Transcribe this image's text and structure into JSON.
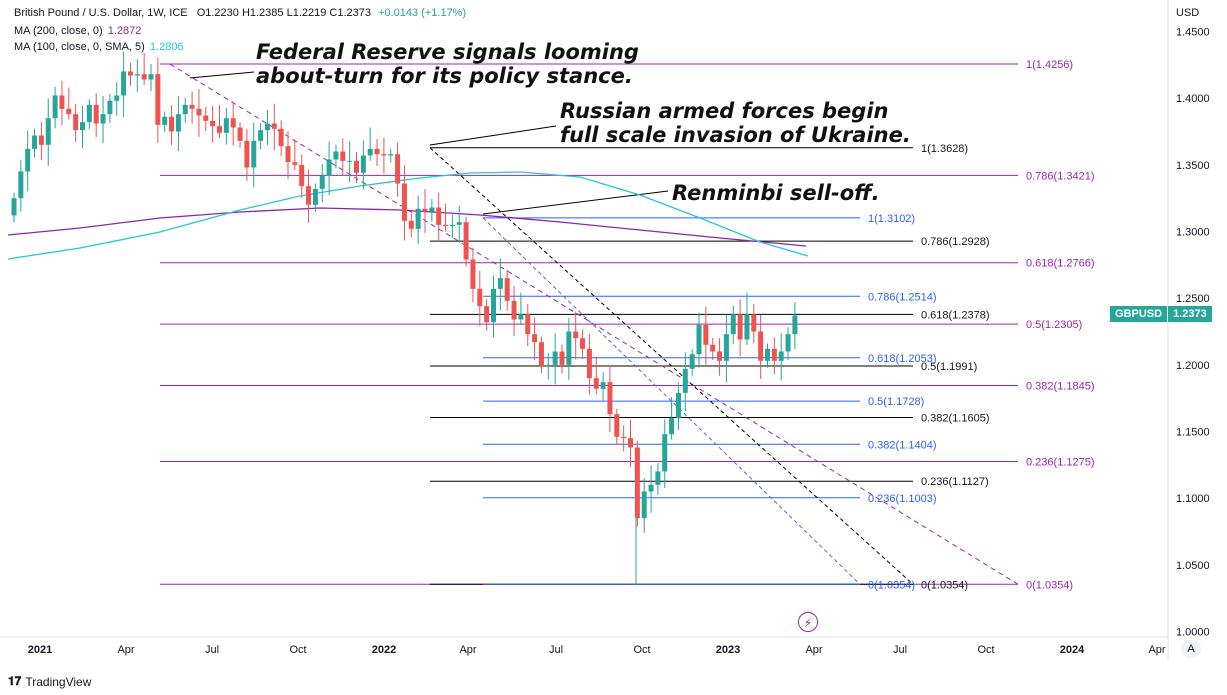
{
  "header": {
    "symbol": "British Pound / U.S. Dollar, 1W, ICE",
    "ohlc": "O1.2230 H1.2385 L1.2219 C1.2373",
    "change": "+0.0143 (+1.17%)"
  },
  "indicators": [
    {
      "label": "MA (200, close, 0)",
      "value": "1.2872",
      "color": "#8e24aa"
    },
    {
      "label": "MA (100, close, 0, SMA, 5)",
      "value": "1.2806",
      "color": "#26c6da"
    }
  ],
  "annotations": [
    [
      "Federal Reserve signals looming",
      "about-turn for its policy stance."
    ],
    [
      "Russian armed forces begin",
      "full scale invasion of Ukraine."
    ],
    [
      "Renminbi sell-off."
    ]
  ],
  "price_tag": {
    "symbol": "GBPUSD",
    "price": "1.2373"
  },
  "footer": {
    "logo": "TradingView"
  },
  "auto_button": "A",
  "colors": {
    "up": "#26a69a",
    "down": "#ef5350",
    "ma200": "#8e24aa",
    "ma100": "#26c6da",
    "fib_purple": "#9c27b0",
    "fib_blue": "#2962ff",
    "fib_black": "#000000"
  },
  "chart_data": {
    "type": "candlestick",
    "y_axis": {
      "label": "USD",
      "ticks": [
        "1.4500",
        "1.4000",
        "1.3500",
        "1.3000",
        "1.2500",
        "1.2000",
        "1.1500",
        "1.1000",
        "1.0500",
        "1.0000"
      ],
      "range": [
        0.99,
        1.46
      ]
    },
    "x_axis": {
      "labels": [
        "2021",
        "Apr",
        "Jul",
        "Oct",
        "2022",
        "Apr",
        "Jul",
        "Oct",
        "2023",
        "Apr",
        "Jul",
        "Oct",
        "2024",
        "Apr"
      ]
    },
    "series": [
      {
        "name": "GBPUSD",
        "close": [
          1.325,
          1.345,
          1.362,
          1.372,
          1.365,
          1.385,
          1.402,
          1.392,
          1.388,
          1.376,
          1.382,
          1.395,
          1.381,
          1.388,
          1.398,
          1.402,
          1.42,
          1.417,
          1.418,
          1.414,
          1.418,
          1.38,
          1.386,
          1.375,
          1.388,
          1.395,
          1.392,
          1.387,
          1.383,
          1.379,
          1.374,
          1.385,
          1.378,
          1.368,
          1.348,
          1.368,
          1.376,
          1.381,
          1.377,
          1.364,
          1.352,
          1.35,
          1.334,
          1.32,
          1.332,
          1.342,
          1.354,
          1.36,
          1.353,
          1.353,
          1.344,
          1.357,
          1.362,
          1.358,
          1.357,
          1.358,
          1.336,
          1.308,
          1.302,
          1.317,
          1.315,
          1.318,
          1.305,
          1.304,
          1.305,
          1.307,
          1.279,
          1.257,
          1.244,
          1.232,
          1.257,
          1.265,
          1.248,
          1.234,
          1.238,
          1.223,
          1.217,
          1.199,
          1.2,
          1.21,
          1.2,
          1.225,
          1.22,
          1.212,
          1.19,
          1.182,
          1.187,
          1.163,
          1.146,
          1.145,
          1.138,
          1.085,
          1.105,
          1.11,
          1.12,
          1.148,
          1.16,
          1.179,
          1.197,
          1.208,
          1.23,
          1.215,
          1.21,
          1.203,
          1.223,
          1.238,
          1.219,
          1.238,
          1.225,
          1.203,
          1.212,
          1.203,
          1.21,
          1.223,
          1.237
        ]
      }
    ],
    "moving_averages": [
      {
        "name": "MA (200, close, 0)",
        "last": 1.2872
      },
      {
        "name": "MA (100, close, 0, SMA, 5)",
        "last": 1.2806
      }
    ],
    "fib_levels": {
      "purple": [
        {
          "label": "1(1.4256)",
          "value": 1.4256
        },
        {
          "label": "0.786(1.3421)",
          "value": 1.3421
        },
        {
          "label": "0.618(1.2766)",
          "value": 1.2766
        },
        {
          "label": "0.5(1.2305)",
          "value": 1.2305
        },
        {
          "label": "0.382(1.1845)",
          "value": 1.1845
        },
        {
          "label": "0.236(1.1275)",
          "value": 1.1275
        },
        {
          "label": "0(1.0354)",
          "value": 1.0354
        }
      ],
      "black": [
        {
          "label": "1(1.3628)",
          "value": 1.3628
        },
        {
          "label": "0.786(1.2928)",
          "value": 1.2928
        },
        {
          "label": "0.618(1.2378)",
          "value": 1.2378
        },
        {
          "label": "0.5(1.1991)",
          "value": 1.1991
        },
        {
          "label": "0.382(1.1605)",
          "value": 1.1605
        },
        {
          "label": "0.236(1.1127)",
          "value": 1.1127
        },
        {
          "label": "0(1.0354)",
          "value": 1.0354
        }
      ],
      "blue": [
        {
          "label": "1(1.3102)",
          "value": 1.3102
        },
        {
          "label": "0.786(1.2514)",
          "value": 1.2514
        },
        {
          "label": "0.618(1.2053)",
          "value": 1.2053
        },
        {
          "label": "0.5(1.1728)",
          "value": 1.1728
        },
        {
          "label": "0.382(1.1404)",
          "value": 1.1404
        },
        {
          "label": "0.236(1.1003)",
          "value": 1.1003
        },
        {
          "label": "0(1.0354)",
          "value": 1.0354
        }
      ]
    }
  }
}
